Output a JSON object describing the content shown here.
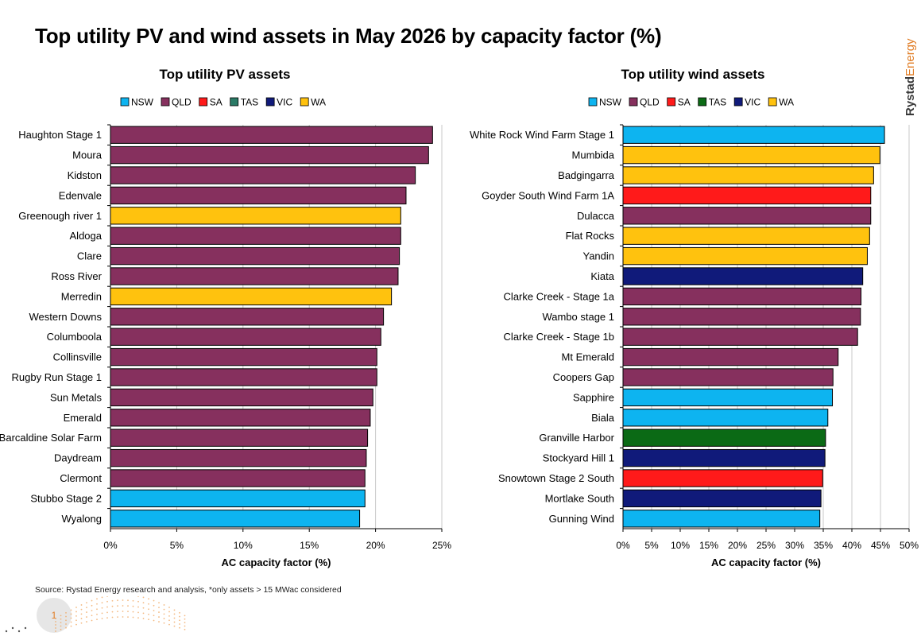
{
  "title": "Top utility PV and wind assets in May 2026 by capacity factor (%)",
  "brand": {
    "part1": "Rystad",
    "part2": "Energy"
  },
  "source": "Source: Rystad Energy research and analysis, *only assets > 15 MWac considered",
  "page_number": "1",
  "colors": {
    "NSW": "#0db4f0",
    "QLD": "#86305e",
    "SA": "#ff1a1a",
    "TAS_pv": "#2a7a66",
    "TAS_wind": "#0b6a15",
    "VIC": "#101a7a",
    "WA": "#ffc20e"
  },
  "chart_data": [
    {
      "type": "bar",
      "orientation": "horizontal",
      "title": "Top utility PV assets",
      "xlabel": "AC capacity factor (%)",
      "ylabel": "",
      "xlim": [
        0,
        25
      ],
      "xticks": [
        "0%",
        "5%",
        "10%",
        "15%",
        "20%",
        "25%"
      ],
      "grid": true,
      "legend_position": "top",
      "legend": [
        {
          "label": "NSW",
          "color": "#0db4f0"
        },
        {
          "label": "QLD",
          "color": "#86305e"
        },
        {
          "label": "SA",
          "color": "#ff1a1a"
        },
        {
          "label": "TAS",
          "color": "#2a7a66"
        },
        {
          "label": "VIC",
          "color": "#101a7a"
        },
        {
          "label": "WA",
          "color": "#ffc20e"
        }
      ],
      "categories": [
        "Haughton Stage 1",
        "Moura",
        "Kidston",
        "Edenvale",
        "Greenough river 1",
        "Aldoga",
        "Clare",
        "Ross River",
        "Merredin",
        "Western Downs",
        "Columboola",
        "Collinsville",
        "Rugby Run Stage 1",
        "Sun Metals",
        "Emerald",
        "Barcaldine Solar Farm",
        "Daydream",
        "Clermont",
        "Stubbo Stage 2",
        "Wyalong"
      ],
      "values": [
        24.3,
        24.0,
        23.0,
        22.3,
        21.9,
        21.9,
        21.8,
        21.7,
        21.2,
        20.6,
        20.4,
        20.1,
        20.1,
        19.8,
        19.6,
        19.4,
        19.3,
        19.2,
        19.2,
        18.8
      ],
      "regions": [
        "QLD",
        "QLD",
        "QLD",
        "QLD",
        "WA",
        "QLD",
        "QLD",
        "QLD",
        "WA",
        "QLD",
        "QLD",
        "QLD",
        "QLD",
        "QLD",
        "QLD",
        "QLD",
        "QLD",
        "QLD",
        "NSW",
        "NSW"
      ]
    },
    {
      "type": "bar",
      "orientation": "horizontal",
      "title": "Top utility wind assets",
      "xlabel": "AC capacity factor (%)",
      "ylabel": "",
      "xlim": [
        0,
        50
      ],
      "xticks": [
        "0%",
        "5%",
        "10%",
        "15%",
        "20%",
        "25%",
        "30%",
        "35%",
        "40%",
        "45%",
        "50%"
      ],
      "grid": true,
      "legend_position": "top",
      "legend": [
        {
          "label": "NSW",
          "color": "#0db4f0"
        },
        {
          "label": "QLD",
          "color": "#86305e"
        },
        {
          "label": "SA",
          "color": "#ff1a1a"
        },
        {
          "label": "TAS",
          "color": "#0b6a15"
        },
        {
          "label": "VIC",
          "color": "#101a7a"
        },
        {
          "label": "WA",
          "color": "#ffc20e"
        }
      ],
      "categories": [
        "White Rock Wind Farm Stage 1",
        "Mumbida",
        "Badgingarra",
        "Goyder South Wind Farm 1A",
        "Dulacca",
        "Flat Rocks",
        "Yandin",
        "Kiata",
        "Clarke Creek - Stage 1a",
        "Wambo stage 1",
        "Clarke Creek - Stage 1b",
        "Mt Emerald",
        "Coopers Gap",
        "Sapphire",
        "Biala",
        "Granville Harbor",
        "Stockyard Hill 1",
        "Snowtown Stage 2 South",
        "Mortlake South",
        "Gunning Wind"
      ],
      "values": [
        45.7,
        44.9,
        43.8,
        43.3,
        43.3,
        43.1,
        42.7,
        41.9,
        41.6,
        41.5,
        41.0,
        37.6,
        36.7,
        36.6,
        35.8,
        35.4,
        35.3,
        34.9,
        34.6,
        34.4
      ],
      "regions": [
        "NSW",
        "WA",
        "WA",
        "SA",
        "QLD",
        "WA",
        "WA",
        "VIC",
        "QLD",
        "QLD",
        "QLD",
        "QLD",
        "QLD",
        "NSW",
        "NSW",
        "TAS",
        "VIC",
        "SA",
        "VIC",
        "NSW"
      ]
    }
  ]
}
